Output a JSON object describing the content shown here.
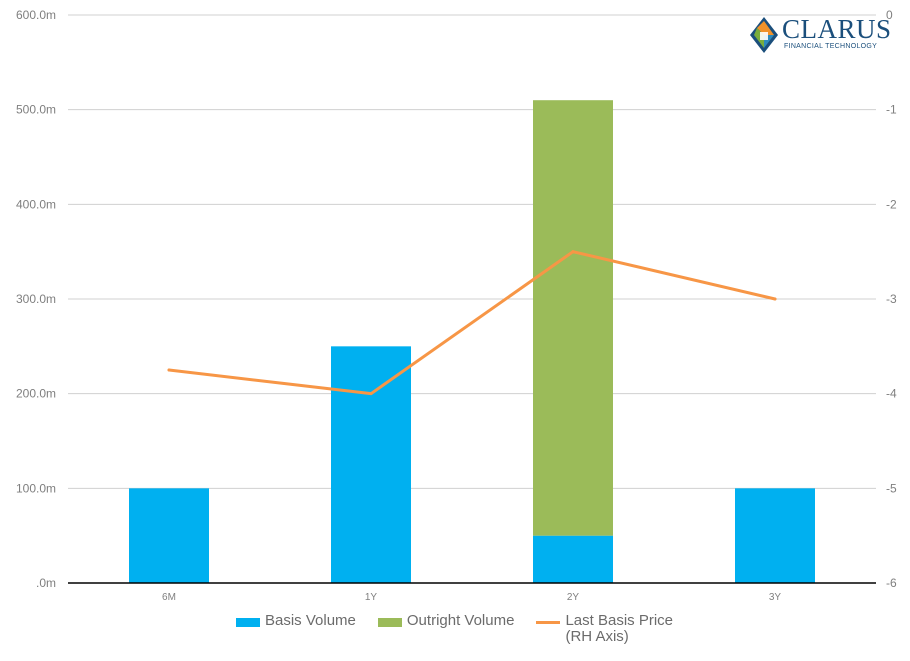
{
  "logo": {
    "name": "CLARUS",
    "tagline": "FINANCIAL TECHNOLOGY",
    "colors": {
      "navy": "#1b4f7c",
      "orange": "#f0922a",
      "green": "#7aad3c",
      "teal": "#2e8bbd"
    }
  },
  "chart_data": {
    "type": "bar",
    "stacked": true,
    "categories": [
      "6M",
      "1Y",
      "2Y",
      "3Y"
    ],
    "series": [
      {
        "name": "Basis Volume",
        "type": "bar",
        "axis": "left",
        "color": "#00b0f0",
        "values": [
          100,
          250,
          50,
          100
        ]
      },
      {
        "name": "Outright Volume",
        "type": "bar",
        "axis": "left",
        "color": "#9bbb59",
        "values": [
          0,
          0,
          460,
          0
        ]
      },
      {
        "name": "Last Basis Price\n(RH Axis)",
        "type": "line",
        "axis": "right",
        "color": "#f79646",
        "values": [
          -3.75,
          -4.0,
          -2.5,
          -3.0
        ]
      }
    ],
    "left_axis": {
      "ylim": [
        0,
        600
      ],
      "ticks": [
        0,
        100,
        200,
        300,
        400,
        500,
        600
      ],
      "tick_labels": [
        ".0m",
        "100.0m",
        "200.0m",
        "300.0m",
        "400.0m",
        "500.0m",
        "600.0m"
      ]
    },
    "right_axis": {
      "ylim": [
        -6,
        0
      ],
      "ticks": [
        -6,
        -5,
        -4,
        -3,
        -2,
        -1,
        0
      ],
      "tick_labels": [
        "-6",
        "-5",
        "-4",
        "-3",
        "-2",
        "-1",
        "0"
      ]
    },
    "grid": true,
    "legend_position": "bottom"
  }
}
